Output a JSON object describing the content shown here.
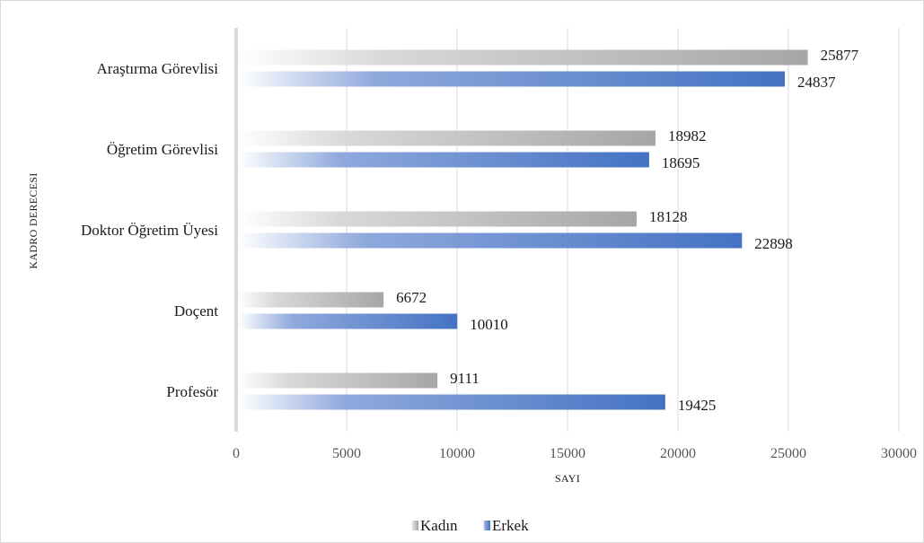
{
  "chart_data": {
    "type": "bar",
    "orientation": "horizontal",
    "categories": [
      "Araştırma Görevlisi",
      "Öğretim Görevlisi",
      "Doktor Öğretim Üyesi",
      "Doçent",
      "Profesör"
    ],
    "series": [
      {
        "name": "Kadın",
        "values": [
          25877,
          18982,
          18128,
          6672,
          9111
        ],
        "color": "#a6a6a6"
      },
      {
        "name": "Erkek",
        "values": [
          24837,
          18695,
          22898,
          10010,
          19425
        ],
        "color": "#4472c4"
      }
    ],
    "xlabel": "SAYI",
    "ylabel": "KADRO DERECESI",
    "xlim": [
      0,
      30000
    ],
    "xticks": [
      0,
      5000,
      10000,
      15000,
      20000,
      25000,
      30000
    ],
    "grid": true,
    "legend_position": "bottom"
  }
}
